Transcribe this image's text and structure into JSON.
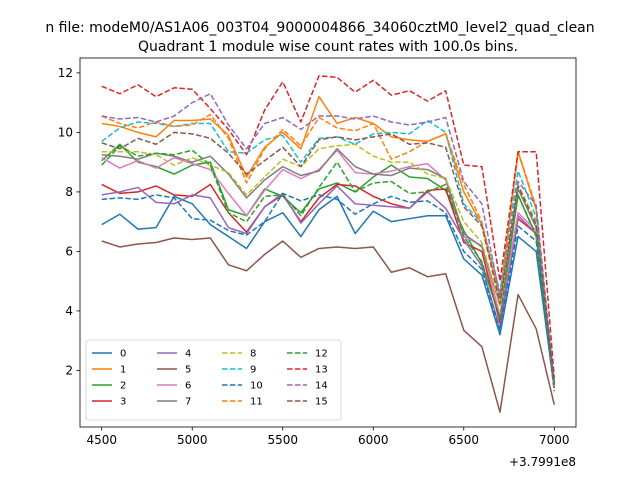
{
  "chart_data": {
    "type": "line",
    "suptitle": "n file: modeM0/AS1A06_003T04_9000004866_34060cztM0_level2_quad_clean",
    "title": "Quadrant 1 module wise count rates with 100.0s bins.",
    "xlabel": "",
    "ylabel": "",
    "x_offset_label": "+3.7991e8",
    "xlim": [
      4380,
      7120
    ],
    "ylim": [
      0.1,
      12.5
    ],
    "xticks": [
      4500,
      5000,
      5500,
      6000,
      6500,
      7000
    ],
    "yticks": [
      2,
      4,
      6,
      8,
      10,
      12
    ],
    "x": [
      4500,
      4600,
      4700,
      4800,
      4900,
      5000,
      5100,
      5200,
      5300,
      5400,
      5500,
      5600,
      5700,
      5800,
      5900,
      6000,
      6100,
      6200,
      6300,
      6400,
      6500,
      6600,
      6700,
      6800,
      6900,
      7000
    ],
    "legend_ncol": 4,
    "legend_loc": "lower left",
    "series": [
      {
        "name": "0",
        "color": "#1f77b4",
        "dash": "solid",
        "values": [
          6.9,
          7.25,
          6.75,
          6.8,
          7.85,
          7.6,
          6.9,
          6.5,
          6.1,
          7.0,
          7.3,
          6.5,
          7.4,
          7.85,
          6.6,
          7.35,
          7.0,
          7.1,
          7.2,
          7.2,
          5.75,
          5.2,
          3.2,
          6.5,
          6.0,
          1.4
        ]
      },
      {
        "name": "1",
        "color": "#ff7f0e",
        "dash": "solid",
        "values": [
          10.3,
          10.2,
          10.0,
          9.85,
          10.4,
          10.4,
          10.45,
          9.9,
          8.5,
          9.5,
          10.0,
          9.45,
          11.2,
          10.3,
          10.5,
          10.3,
          9.85,
          9.75,
          9.7,
          9.95,
          8.0,
          6.9,
          4.5,
          9.35,
          7.4,
          1.4
        ]
      },
      {
        "name": "2",
        "color": "#2ca02c",
        "dash": "solid",
        "values": [
          9.05,
          9.6,
          9.0,
          8.85,
          8.6,
          8.9,
          9.0,
          7.4,
          7.2,
          8.1,
          7.85,
          7.3,
          8.1,
          8.3,
          8.0,
          8.5,
          8.9,
          8.5,
          8.45,
          8.05,
          6.7,
          5.6,
          3.8,
          7.9,
          6.5,
          1.6
        ]
      },
      {
        "name": "3",
        "color": "#d62728",
        "dash": "solid",
        "values": [
          8.25,
          7.95,
          8.0,
          8.2,
          7.9,
          7.85,
          8.25,
          7.3,
          6.65,
          7.5,
          7.9,
          7.0,
          7.8,
          8.25,
          8.2,
          7.85,
          7.6,
          7.45,
          8.05,
          8.1,
          6.3,
          6.0,
          3.6,
          7.1,
          6.6,
          1.5
        ]
      },
      {
        "name": "4",
        "color": "#9467bd",
        "dash": "solid",
        "values": [
          7.9,
          8.0,
          8.15,
          7.65,
          7.6,
          7.9,
          7.8,
          6.8,
          6.6,
          7.5,
          7.95,
          6.95,
          7.6,
          8.2,
          7.6,
          7.55,
          7.5,
          7.45,
          8.0,
          7.45,
          6.4,
          5.5,
          3.4,
          7.2,
          6.6,
          1.5
        ]
      },
      {
        "name": "5",
        "color": "#8c564b",
        "dash": "solid",
        "values": [
          6.35,
          6.15,
          6.25,
          6.3,
          6.45,
          6.4,
          6.45,
          5.55,
          5.35,
          5.9,
          6.35,
          5.8,
          6.1,
          6.15,
          6.1,
          6.15,
          5.3,
          5.45,
          5.15,
          5.25,
          3.35,
          2.8,
          0.6,
          4.55,
          3.4,
          0.85
        ]
      },
      {
        "name": "6",
        "color": "#e377c2",
        "dash": "solid",
        "values": [
          9.15,
          8.8,
          9.05,
          8.8,
          9.15,
          8.95,
          8.75,
          7.95,
          7.2,
          8.05,
          8.75,
          8.45,
          8.75,
          9.4,
          8.65,
          8.6,
          8.7,
          8.85,
          8.95,
          8.4,
          6.5,
          6.2,
          3.85,
          7.3,
          6.7,
          1.6
        ]
      },
      {
        "name": "7",
        "color": "#7f7f7f",
        "dash": "solid",
        "values": [
          9.25,
          9.2,
          9.1,
          9.3,
          9.2,
          9.0,
          9.2,
          8.6,
          7.8,
          8.4,
          8.85,
          8.55,
          8.7,
          9.45,
          8.85,
          8.6,
          8.55,
          8.8,
          8.75,
          8.45,
          6.6,
          6.15,
          4.2,
          8.1,
          6.8,
          1.55
        ]
      },
      {
        "name": "8",
        "color": "#bcbd22",
        "dash": "dashed",
        "values": [
          9.35,
          9.35,
          9.35,
          9.25,
          8.9,
          9.15,
          8.9,
          8.65,
          7.9,
          8.5,
          9.1,
          8.85,
          9.45,
          9.55,
          9.6,
          9.2,
          9.0,
          9.0,
          8.6,
          8.45,
          7.0,
          6.3,
          4.15,
          8.25,
          7.0,
          1.55
        ]
      },
      {
        "name": "9",
        "color": "#17becf",
        "dash": "dashed",
        "values": [
          9.7,
          10.15,
          10.35,
          10.3,
          10.2,
          10.3,
          10.3,
          9.35,
          9.3,
          9.75,
          9.9,
          9.0,
          9.8,
          9.85,
          9.6,
          9.95,
          10.0,
          9.95,
          10.4,
          10.0,
          7.6,
          6.95,
          4.65,
          8.7,
          7.15,
          1.55
        ]
      },
      {
        "name": "10",
        "color": "#1f77b4",
        "dash": "dashed",
        "values": [
          7.75,
          7.8,
          7.75,
          7.9,
          7.8,
          7.1,
          7.05,
          6.7,
          6.55,
          7.0,
          7.95,
          7.7,
          7.9,
          7.75,
          7.25,
          7.6,
          7.85,
          7.65,
          7.7,
          7.3,
          6.0,
          5.4,
          3.35,
          6.85,
          6.35,
          1.3
        ]
      },
      {
        "name": "11",
        "color": "#ff7f0e",
        "dash": "dashed",
        "values": [
          10.55,
          10.3,
          10.15,
          10.35,
          10.2,
          10.25,
          10.6,
          9.8,
          8.3,
          9.45,
          10.1,
          9.55,
          10.5,
          10.15,
          10.05,
          10.3,
          9.1,
          9.35,
          9.7,
          9.95,
          8.25,
          7.0,
          4.4,
          9.35,
          7.5,
          1.45
        ]
      },
      {
        "name": "12",
        "color": "#2ca02c",
        "dash": "dashed",
        "values": [
          8.9,
          9.55,
          9.2,
          9.3,
          9.25,
          9.4,
          8.9,
          7.3,
          7.0,
          7.85,
          7.9,
          7.2,
          8.15,
          9.0,
          8.0,
          8.3,
          8.35,
          7.95,
          8.0,
          8.25,
          6.5,
          5.65,
          3.75,
          7.9,
          6.55,
          1.55
        ]
      },
      {
        "name": "13",
        "color": "#d62728",
        "dash": "dashed",
        "values": [
          11.55,
          11.3,
          11.6,
          11.2,
          11.5,
          11.45,
          10.8,
          10.1,
          9.25,
          10.75,
          11.7,
          10.35,
          11.9,
          11.85,
          11.35,
          11.75,
          11.25,
          11.4,
          11.05,
          11.4,
          8.9,
          8.85,
          5.0,
          9.35,
          9.35,
          1.75
        ]
      },
      {
        "name": "14",
        "color": "#9467bd",
        "dash": "dashed",
        "values": [
          10.55,
          10.45,
          10.5,
          10.35,
          10.55,
          11.0,
          11.3,
          10.25,
          9.45,
          10.3,
          10.5,
          10.1,
          10.55,
          10.55,
          10.45,
          10.55,
          10.35,
          10.25,
          10.35,
          10.5,
          8.35,
          7.6,
          4.45,
          8.35,
          7.55,
          1.55
        ]
      },
      {
        "name": "15",
        "color": "#8c564b",
        "dash": "dashed",
        "values": [
          9.65,
          9.45,
          9.8,
          9.6,
          10.0,
          9.95,
          9.8,
          9.3,
          8.6,
          9.05,
          9.5,
          8.85,
          9.75,
          9.85,
          9.75,
          9.85,
          9.95,
          9.6,
          9.65,
          9.5,
          7.5,
          6.85,
          4.25,
          8.2,
          6.9,
          1.55
        ]
      }
    ]
  }
}
